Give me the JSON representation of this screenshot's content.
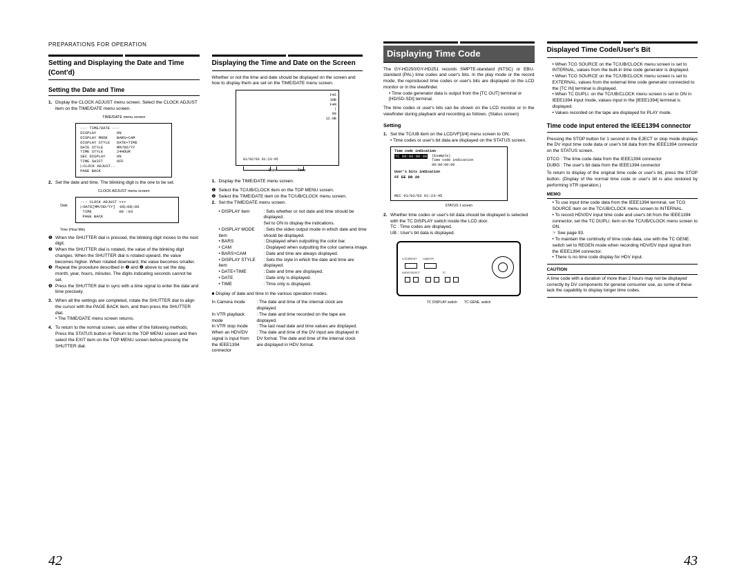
{
  "header": "PREPARATIONS FOR OPERATION",
  "left": {
    "sec1_title": "Setting and Displaying the Date and Time (Cont'd)",
    "sub1": "Setting the Date and Time",
    "step1": "Display the CLOCK ADJUST menu screen.\nSelect the CLOCK ADJUST item on the TIME/DATE menu screen.",
    "menu1_cap": "TIME/DATE menu screen",
    "menu1": "--- TIME/DATE ---\nDISPLAY         ON\nDISPLAY MODE    BARS+CAM\nDISPLAY STYLE   DATE+TIME\nDATE STYLE      MM/DD/YY\nTIME STYLE      24HOUR\nSEC DISPLAY     ON\nTIME SHIFT      OFF\n▷CLOCK ADJUST..\nPAGE BACK",
    "step2": "Set the date and time.\nThe blinking digit is the one to be set.",
    "menu2_cap": "CLOCK ADJUST menu screen",
    "menu2": "--- CLOCK ADJUST <+>\n▷DATE[MM/DD/YY]  06▷06▷06\n TIME            09 :03\n PAGE BACK",
    "menu2_lbl_date": "Date",
    "menu2_lbl_time": "Time (Hour:Min)",
    "c1": "When the SHUTTER dial is pressed, the blinking digit moves to the next digit.",
    "c2": "When the SHUTTER dial is rotated, the value of the blinking digit changes.\nWhen the SHUTTER dial is rotated upward, the value becomes higher. When rotated downward, the value becomes smaller.",
    "c3": "Repeat the procedure described in ❶ and ❷ above to set the day, month, year, hours, minutes.\nThe digits indicating seconds cannot be set.",
    "c4": "Press the SHUTTER dial in sync with a time signal to enter the date and time precisely.",
    "step3": "When all the settings are completed, rotate the SHUTTER dial to align the cursor with the PAGE BACK item, and then press the SHUTTER dial.",
    "step3b": "The TIME/DATE menu screen returns.",
    "step4": "To return to the normal screen, use either of the following methods.\nPress the STATUS button\nor\nReturn to the TOP MENU screen and then select the EXIT item on the TOP MENU screen before pressing the SHUTTER dial.",
    "sec2_title": "Displaying the Time and Date on the Screen",
    "intro2": "Whether or not the time and date should be displayed on the screen and how to display them are set on the TIME/DATE menu screen.",
    "dia_labels": [
      "F45",
      "3dB",
      "F4M",
      "|",
      "90",
      "12.0B"
    ],
    "dia_bottom": "01/02/03  01:23:45",
    "dia_date": "Date",
    "dia_time": "Time",
    "r_step1": "Display the TIME/DATE menu screen.",
    "r_c1": "Select the TC/UB/CLOCK item on the TOP MENU screen.",
    "r_c2": "Select the TIME/DATE item on the TC/UB/CLOCK menu screen.",
    "r_step2": "Set the TIME/DATE menu screen.",
    "defs": [
      [
        "DISPLAY item",
        ": Sets whether or not date and time should be displayed.\nSet to ON to display the indications."
      ],
      [
        "DISPLAY MODE item",
        ": Sets the video output mode in which date and time should be displayed."
      ],
      [
        "BARS",
        ": Displayed when outputting the color bar."
      ],
      [
        "CAM",
        ": Displayed when outputting the color camera image."
      ],
      [
        "BARS+CAM",
        ": Date and time are always displayed."
      ],
      [
        "DISPLAY STYLE item",
        ": Sets the style in which the date and time are displayed."
      ],
      [
        "DATE+TIME",
        ": Date and time are displayed."
      ],
      [
        "DATE",
        ": Date only is displayed."
      ],
      [
        "TIME",
        ": Time only is displayed."
      ]
    ],
    "footnote": "Display of date and time in the various operation modes.",
    "modes": [
      [
        "In Camera mode",
        ": The date and time of the internal clock are displayed."
      ],
      [
        "In VTR playback mode",
        ": The date and time recorded on the tape are displayed."
      ],
      [
        "In VTR stop mode",
        ": The last read date and time values are displayed."
      ],
      [
        "When an HDV/DV signal is input from the IEEE1394 connector",
        ": The date and time of the DV input are displayed in DV format. The date and time of the internal clock are displayed in HDV format."
      ]
    ]
  },
  "right": {
    "sec_title": "Displaying Time Code",
    "intro1": "The GY-HD250/GY-HD251 records SMPTE-standard (NTSC) or EBU-standard (PAL) time codes and user's bits. In the play mode or the record mode, the reproduced time codes or user's bits are displayed on the LCD monitor or in the viewfinder.",
    "bullet1": "Time code generator data is output from the [TC OUT] terminal or [HD/SD-SDI] terminal.",
    "intro2": "The time codes or user's bits can be shown on the LCD monitor or in the viewfinder during playback and recording as follows. (Status screen)",
    "setting_head": "Setting",
    "s1": "Set the TC/UB item on the LCD/VF[3/4] menu screen to ON.",
    "s1b": "Time codes or user's bit data are displayed on the STATUS screen.",
    "ind_tc_lbl": "Time code indication",
    "ind_tc": "TC 00:00:00:00",
    "ind_tc_ex": "(Example)\nTime code indication\n00:00:00:00",
    "ind_ub_lbl": "User's bits indication",
    "ind_ub": "FF EE DD 20",
    "ind_rec": "REC     01/02/03  01:23:45",
    "ind_cap": "STATUS 1 screen",
    "s2": "Whether time codes or user's bit data should be displayed is selected with the TC DISPLAY switch inside the LCD door.",
    "s2_tc": "TC   : Time codes are displayed.",
    "s2_ub": "UB   : User's bit data is displayed.",
    "lcd_lbl1": "TC DISPLAY switch",
    "lcd_lbl2": "TC GENE. switch",
    "sec2_title": "Displayed Time Code/User's Bit",
    "db1": "When TCG SOURCE on the TC/UB/CLOCK menu screen is set to INTERNAL, values from the built-in time code generator is displayed.",
    "db2": "When TCG SOURCE on the TC/UB/CLOCK menu screen is set to EXTERNAL, values from the external time code generator connected to the [TC IN] terminal is displayed.",
    "db3": "When TC DUPLI. on the TC/UB/CLOCK menu screen is set to ON in IEEE1394 input mode, values input in the [IEEE1394] terminal is displayed.",
    "db4": "Values recorded on the tape are displayed for PLAY mode.",
    "sub2": "Time code input entered the IEEE1394 connector",
    "ieee1": "Pressing the STOP button for 1 second in the EJECT or stop mode displays the DV input time code data or user's bit data from the IEEE1394 connector on the STATUS screen.",
    "ieee2": "DTCG : The time code data from the IEEE1394 connector\nDUBG : The user's bit data from the IEEE1394 connector",
    "ieee3": "To return to display of the original time code or user's bit, press the STOP button. (Display of the normal time code or user's bit is also restored by performing VTR operation.)",
    "memo_lbl": "MEMO",
    "memo1": "To use input time code data from the IEEE1394 terminal, set TCG SOURCE item on the TC/UB/CLOCK menu screen to INTERNAL.",
    "memo2": "To record HDV/DV input time code and user's bit from the IEEE1394 connector, set the TC DUPLI. item on the TC/UB/CLOCK menu screen to ON.",
    "memo2b": "See page 93.",
    "memo3": "To maintain the continuity of time code data, use with the TC GENE. switch set to REGEN mode when recording HDV/DV input signal from the IEEE1394 connector.",
    "memo4": "There is no time code display for HDV input.",
    "caution_lbl": "CAUTION",
    "caution": "A time code with a duration of more than 2 hours may not be displayed correctly by DV components for general consumer use, as some of these lack the capability to display longer time codes."
  },
  "page_left": "42",
  "page_right": "43"
}
